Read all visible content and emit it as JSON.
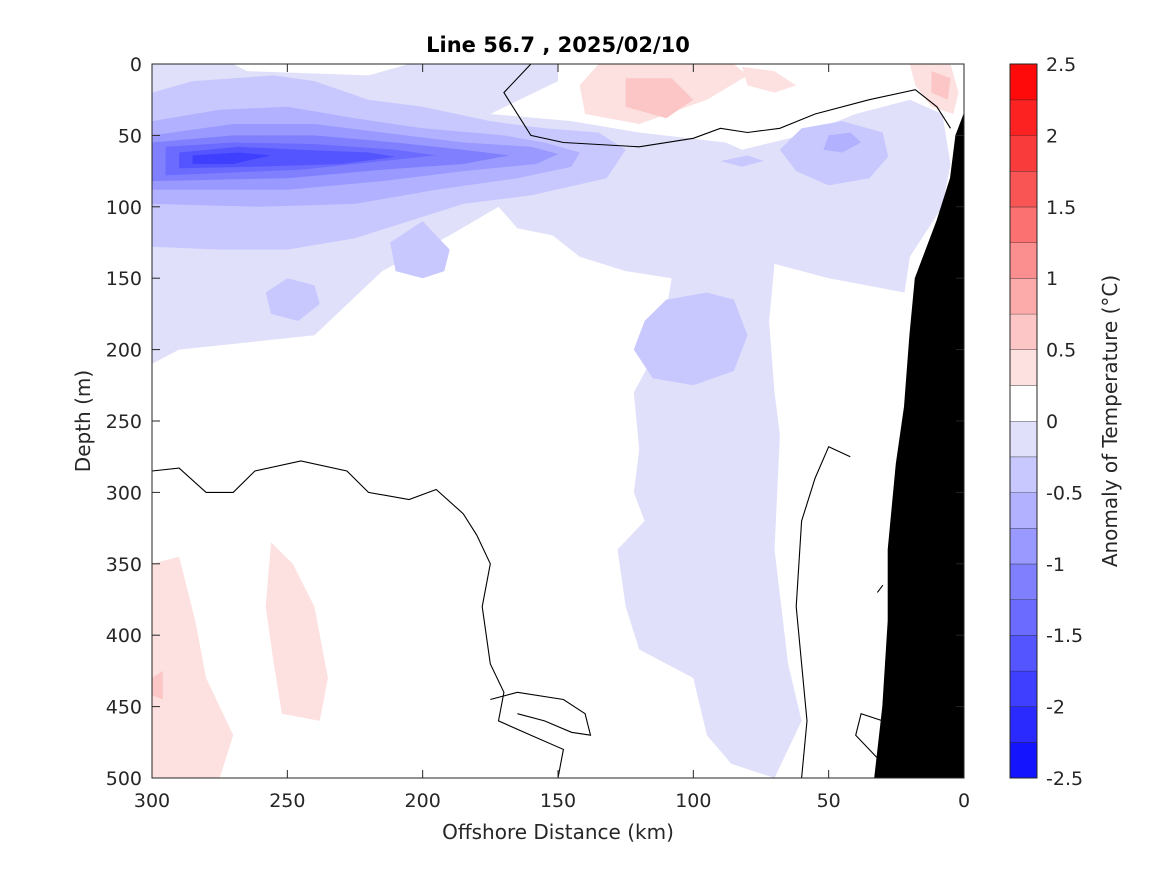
{
  "chart_data": {
    "type": "heatmap",
    "title": "Line 56.7 , 2025/02/10",
    "xlabel": "Offshore Distance (km)",
    "ylabel": "Depth (m)",
    "xlim": [
      300,
      0
    ],
    "ylim": [
      0,
      500
    ],
    "x_ticks": [
      300,
      250,
      200,
      150,
      100,
      50,
      0
    ],
    "y_ticks": [
      0,
      50,
      100,
      150,
      200,
      250,
      300,
      350,
      400,
      450,
      500
    ],
    "colorbar": {
      "label": "Anomaly of Temperature (°C)",
      "range": [
        -2.5,
        2.5
      ],
      "step": 0.25,
      "tick_values": [
        2.5,
        2,
        1.5,
        1,
        0.5,
        0,
        -0.5,
        -1,
        -1.5,
        -2,
        -2.5
      ],
      "tick_labels": [
        "2.5",
        "2",
        "1.5",
        "1",
        "0.5",
        "0",
        "-0.5",
        "-1",
        "-1.5",
        "-2",
        "-2.5"
      ],
      "colors": {
        "-2.5": "#1414ff",
        "-2.25": "#2a2aff",
        "-2": "#3f3fff",
        "-1.75": "#5555ff",
        "-1.5": "#6b6bff",
        "-1.25": "#8080ff",
        "-1": "#9999ff",
        "-0.75": "#b1b1ff",
        "-0.5": "#c8c8ff",
        "-0.25": "#e0e0fa",
        "0": "#ffffff",
        "0.25": "#fde0e0",
        "0.5": "#fcc6c6",
        "0.75": "#fcaaaa",
        "1": "#fb8f8f",
        "1.25": "#fb7070",
        "1.5": "#fa5555",
        "1.75": "#f93b3b",
        "2": "#fc2222",
        "2.25": "#ff0a0a"
      }
    },
    "contour_level": 0,
    "bathymetry_color": "#000000",
    "anomaly_regions": [
      {
        "level": -0.25,
        "points": [
          [
            300,
            0
          ],
          [
            270,
            0
          ],
          [
            265,
            5
          ],
          [
            220,
            8
          ],
          [
            205,
            0
          ],
          [
            150,
            0
          ],
          [
            150,
            12
          ],
          [
            175,
            35
          ],
          [
            145,
            40
          ],
          [
            120,
            48
          ],
          [
            88,
            55
          ],
          [
            82,
            60
          ],
          [
            60,
            50
          ],
          [
            40,
            35
          ],
          [
            20,
            25
          ],
          [
            8,
            35
          ],
          [
            5,
            70
          ],
          [
            8,
            100
          ],
          [
            20,
            135
          ],
          [
            22,
            160
          ],
          [
            50,
            150
          ],
          [
            70,
            140
          ],
          [
            72,
            180
          ],
          [
            70,
            230
          ],
          [
            68,
            260
          ],
          [
            70,
            340
          ],
          [
            65,
            420
          ],
          [
            60,
            460
          ],
          [
            70,
            500
          ],
          [
            86,
            490
          ],
          [
            95,
            470
          ],
          [
            100,
            430
          ],
          [
            120,
            410
          ],
          [
            125,
            380
          ],
          [
            128,
            340
          ],
          [
            118,
            320
          ],
          [
            122,
            300
          ],
          [
            120,
            270
          ],
          [
            122,
            230
          ],
          [
            112,
            195
          ],
          [
            108,
            150
          ],
          [
            125,
            145
          ],
          [
            142,
            135
          ],
          [
            152,
            120
          ],
          [
            165,
            115
          ],
          [
            172,
            100
          ],
          [
            190,
            120
          ],
          [
            215,
            145
          ],
          [
            240,
            190
          ],
          [
            290,
            200
          ],
          [
            300,
            210
          ]
        ]
      },
      {
        "level": -0.5,
        "points": [
          [
            300,
            20
          ],
          [
            285,
            12
          ],
          [
            255,
            8
          ],
          [
            240,
            12
          ],
          [
            220,
            25
          ],
          [
            200,
            30
          ],
          [
            175,
            40
          ],
          [
            155,
            45
          ],
          [
            135,
            48
          ],
          [
            125,
            60
          ],
          [
            132,
            80
          ],
          [
            160,
            92
          ],
          [
            185,
            98
          ],
          [
            205,
            110
          ],
          [
            225,
            122
          ],
          [
            250,
            130
          ],
          [
            275,
            130
          ],
          [
            300,
            128
          ]
        ]
      },
      {
        "level": -0.5,
        "points": [
          [
            200,
            110
          ],
          [
            212,
            125
          ],
          [
            210,
            145
          ],
          [
            200,
            150
          ],
          [
            192,
            145
          ],
          [
            190,
            130
          ]
        ]
      },
      {
        "level": -0.5,
        "points": [
          [
            250,
            150
          ],
          [
            258,
            160
          ],
          [
            256,
            175
          ],
          [
            246,
            180
          ],
          [
            238,
            168
          ],
          [
            240,
            155
          ]
        ]
      },
      {
        "level": -0.5,
        "points": [
          [
            95,
            160
          ],
          [
            110,
            165
          ],
          [
            118,
            180
          ],
          [
            122,
            200
          ],
          [
            115,
            220
          ],
          [
            100,
            225
          ],
          [
            85,
            215
          ],
          [
            80,
            190
          ],
          [
            85,
            165
          ]
        ]
      },
      {
        "level": -0.5,
        "points": [
          [
            60,
            45
          ],
          [
            45,
            40
          ],
          [
            30,
            48
          ],
          [
            28,
            65
          ],
          [
            35,
            80
          ],
          [
            50,
            85
          ],
          [
            62,
            75
          ],
          [
            68,
            60
          ]
        ]
      },
      {
        "level": -0.5,
        "points": [
          [
            90,
            68
          ],
          [
            80,
            64
          ],
          [
            74,
            68
          ],
          [
            82,
            72
          ]
        ]
      },
      {
        "level": -0.75,
        "points": [
          [
            300,
            40
          ],
          [
            275,
            32
          ],
          [
            250,
            30
          ],
          [
            225,
            38
          ],
          [
            200,
            45
          ],
          [
            170,
            50
          ],
          [
            155,
            55
          ],
          [
            142,
            62
          ],
          [
            145,
            72
          ],
          [
            165,
            80
          ],
          [
            195,
            88
          ],
          [
            225,
            98
          ],
          [
            260,
            100
          ],
          [
            300,
            98
          ]
        ]
      },
      {
        "level": -0.75,
        "points": [
          [
            50,
            50
          ],
          [
            42,
            48
          ],
          [
            38,
            55
          ],
          [
            45,
            62
          ],
          [
            52,
            60
          ]
        ]
      },
      {
        "level": -1,
        "points": [
          [
            300,
            50
          ],
          [
            270,
            42
          ],
          [
            240,
            42
          ],
          [
            215,
            48
          ],
          [
            185,
            55
          ],
          [
            160,
            58
          ],
          [
            150,
            63
          ],
          [
            158,
            70
          ],
          [
            185,
            75
          ],
          [
            215,
            82
          ],
          [
            250,
            88
          ],
          [
            300,
            88
          ]
        ]
      },
      {
        "level": -1.25,
        "points": [
          [
            300,
            55
          ],
          [
            270,
            50
          ],
          [
            240,
            50
          ],
          [
            210,
            55
          ],
          [
            185,
            60
          ],
          [
            168,
            64
          ],
          [
            185,
            70
          ],
          [
            215,
            74
          ],
          [
            250,
            80
          ],
          [
            300,
            82
          ]
        ]
      },
      {
        "level": -1.5,
        "points": [
          [
            295,
            58
          ],
          [
            270,
            55
          ],
          [
            240,
            56
          ],
          [
            210,
            60
          ],
          [
            195,
            64
          ],
          [
            215,
            68
          ],
          [
            245,
            74
          ],
          [
            295,
            78
          ]
        ]
      },
      {
        "level": -1.75,
        "points": [
          [
            290,
            62
          ],
          [
            268,
            58
          ],
          [
            245,
            60
          ],
          [
            220,
            62
          ],
          [
            210,
            65
          ],
          [
            230,
            70
          ],
          [
            262,
            72
          ],
          [
            290,
            73
          ]
        ]
      },
      {
        "level": -2,
        "points": [
          [
            285,
            64
          ],
          [
            268,
            62
          ],
          [
            256,
            64
          ],
          [
            270,
            70
          ],
          [
            285,
            70
          ]
        ]
      },
      {
        "level": 0.25,
        "points": [
          [
            135,
            0
          ],
          [
            85,
            0
          ],
          [
            80,
            8
          ],
          [
            95,
            25
          ],
          [
            120,
            42
          ],
          [
            140,
            35
          ],
          [
            142,
            15
          ]
        ]
      },
      {
        "level": 0.25,
        "points": [
          [
            82,
            2
          ],
          [
            70,
            5
          ],
          [
            62,
            15
          ],
          [
            70,
            20
          ],
          [
            80,
            15
          ]
        ]
      },
      {
        "level": 0.25,
        "points": [
          [
            20,
            0
          ],
          [
            5,
            0
          ],
          [
            2,
            20
          ],
          [
            4,
            35
          ],
          [
            12,
            30
          ],
          [
            18,
            15
          ]
        ]
      },
      {
        "level": 0.25,
        "points": [
          [
            300,
            350
          ],
          [
            290,
            345
          ],
          [
            284,
            390
          ],
          [
            280,
            430
          ],
          [
            270,
            470
          ],
          [
            275,
            500
          ],
          [
            300,
            500
          ]
        ]
      },
      {
        "level": 0.25,
        "points": [
          [
            256,
            335
          ],
          [
            248,
            350
          ],
          [
            240,
            380
          ],
          [
            235,
            430
          ],
          [
            238,
            460
          ],
          [
            252,
            455
          ],
          [
            255,
            420
          ],
          [
            258,
            380
          ]
        ]
      },
      {
        "level": 0.5,
        "points": [
          [
            125,
            10
          ],
          [
            108,
            10
          ],
          [
            100,
            25
          ],
          [
            110,
            38
          ],
          [
            125,
            30
          ]
        ]
      },
      {
        "level": 0.5,
        "points": [
          [
            12,
            5
          ],
          [
            5,
            10
          ],
          [
            6,
            25
          ],
          [
            12,
            20
          ]
        ]
      },
      {
        "level": 0.5,
        "points": [
          [
            300,
            430
          ],
          [
            296,
            425
          ],
          [
            296,
            445
          ],
          [
            300,
            442
          ]
        ]
      }
    ],
    "zero_contours": [
      [
        [
          300,
          285
        ],
        [
          290,
          283
        ],
        [
          280,
          300
        ],
        [
          270,
          300
        ],
        [
          262,
          285
        ],
        [
          245,
          278
        ],
        [
          228,
          285
        ],
        [
          220,
          300
        ],
        [
          205,
          305
        ],
        [
          195,
          298
        ],
        [
          185,
          315
        ],
        [
          180,
          330
        ],
        [
          175,
          350
        ],
        [
          178,
          380
        ],
        [
          175,
          420
        ],
        [
          170,
          440
        ],
        [
          172,
          460
        ],
        [
          160,
          470
        ],
        [
          148,
          480
        ],
        [
          150,
          500
        ]
      ],
      [
        [
          175,
          445
        ],
        [
          165,
          440
        ],
        [
          148,
          445
        ],
        [
          140,
          455
        ],
        [
          138,
          470
        ],
        [
          145,
          468
        ],
        [
          155,
          460
        ],
        [
          165,
          455
        ]
      ],
      [
        [
          160,
          0
        ],
        [
          170,
          20
        ],
        [
          160,
          50
        ],
        [
          148,
          55
        ],
        [
          120,
          58
        ],
        [
          100,
          52
        ],
        [
          90,
          45
        ],
        [
          80,
          48
        ],
        [
          68,
          45
        ],
        [
          55,
          35
        ],
        [
          35,
          25
        ],
        [
          18,
          18
        ],
        [
          10,
          30
        ],
        [
          5,
          45
        ]
      ],
      [
        [
          30,
          490
        ],
        [
          40,
          470
        ],
        [
          38,
          455
        ],
        [
          30,
          460
        ]
      ],
      [
        [
          42,
          275
        ],
        [
          50,
          268
        ],
        [
          55,
          290
        ],
        [
          60,
          320
        ],
        [
          62,
          380
        ],
        [
          60,
          420
        ],
        [
          58,
          460
        ],
        [
          60,
          500
        ]
      ],
      [
        [
          30,
          365
        ],
        [
          32,
          370
        ]
      ]
    ],
    "bathymetry": [
      [
        33,
        500
      ],
      [
        30,
        450
      ],
      [
        28,
        390
      ],
      [
        28,
        340
      ],
      [
        25,
        280
      ],
      [
        22,
        240
      ],
      [
        20,
        190
      ],
      [
        18,
        150
      ],
      [
        10,
        110
      ],
      [
        5,
        80
      ],
      [
        3,
        50
      ],
      [
        0,
        35
      ],
      [
        0,
        500
      ]
    ]
  }
}
